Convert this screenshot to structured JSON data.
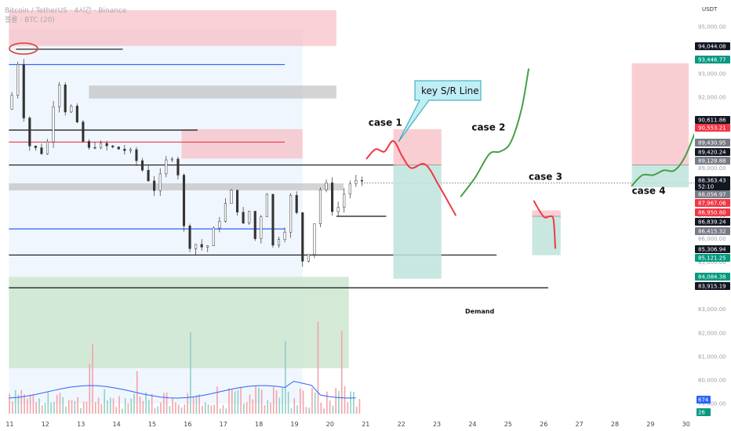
{
  "chart_data": {
    "type": "candlestick",
    "pair": "Bitcoin / TetherUS · 4시간 · Binance",
    "subtitle": "볼륨 · BTC (20)",
    "currency": "USDT",
    "ylim": [
      78500,
      96000
    ],
    "y_ticks": [
      95000,
      93000,
      92000,
      91000,
      90000,
      89000,
      88000,
      87000,
      86000,
      85000,
      84000,
      83000,
      82000,
      81000,
      80000,
      79000
    ],
    "x_ticks": [
      "11",
      "12",
      "13",
      "14",
      "15",
      "16",
      "17",
      "18",
      "19",
      "20",
      "21",
      "22",
      "23",
      "24",
      "25",
      "26",
      "27",
      "28",
      "29",
      "30"
    ],
    "price_path": [
      [
        11.0,
        91500
      ],
      [
        11.2,
        92200
      ],
      [
        11.35,
        93600
      ],
      [
        11.5,
        91200
      ],
      [
        11.7,
        89700
      ],
      [
        11.9,
        89900
      ],
      [
        12.1,
        89400
      ],
      [
        12.3,
        91500
      ],
      [
        12.5,
        92600
      ],
      [
        12.7,
        91200
      ],
      [
        12.9,
        91800
      ],
      [
        13.05,
        90400
      ],
      [
        13.3,
        89800
      ],
      [
        13.6,
        90000
      ],
      [
        13.9,
        89900
      ],
      [
        14.2,
        89800
      ],
      [
        14.5,
        89700
      ],
      [
        14.8,
        89000
      ],
      [
        15.0,
        88500
      ],
      [
        15.2,
        88000
      ],
      [
        15.4,
        89000
      ],
      [
        15.6,
        89600
      ],
      [
        15.8,
        89200
      ],
      [
        16.0,
        86500
      ],
      [
        16.2,
        85500
      ],
      [
        16.4,
        85900
      ],
      [
        16.6,
        85400
      ],
      [
        16.8,
        86300
      ],
      [
        17.0,
        86800
      ],
      [
        17.2,
        87600
      ],
      [
        17.4,
        88200
      ],
      [
        17.6,
        86200
      ],
      [
        17.8,
        87400
      ],
      [
        18.0,
        86000
      ],
      [
        18.15,
        86800
      ],
      [
        18.3,
        88400
      ],
      [
        18.5,
        85700
      ],
      [
        18.7,
        86100
      ],
      [
        18.9,
        86500
      ],
      [
        19.0,
        87800
      ],
      [
        19.1,
        88800
      ],
      [
        19.2,
        86200
      ],
      [
        19.3,
        85000
      ],
      [
        19.45,
        85300
      ],
      [
        19.6,
        85600
      ],
      [
        19.7,
        87200
      ],
      [
        19.85,
        88200
      ],
      [
        20.0,
        88300
      ],
      [
        20.2,
        87000
      ],
      [
        20.4,
        87500
      ],
      [
        20.6,
        88300
      ],
      [
        20.8,
        88450
      ],
      [
        20.9,
        88363
      ]
    ],
    "zones": [
      {
        "name": "Demand",
        "kind": "demand",
        "x": [
          11,
          20.55
        ],
        "y": [
          80500,
          84380
        ]
      },
      {
        "kind": "supply",
        "x": [
          11,
          20.2
        ],
        "y": [
          94180,
          95700
        ]
      },
      {
        "kind": "supply",
        "x": [
          15.85,
          19.25
        ],
        "y": [
          89400,
          90650
        ]
      },
      {
        "kind": "range",
        "x": [
          11,
          19.25
        ],
        "y": [
          79000,
          94900
        ]
      },
      {
        "kind": "neutral",
        "x": [
          13.25,
          20.2
        ],
        "y": [
          91950,
          92500
        ]
      },
      {
        "kind": "neutral",
        "x": [
          11,
          20.4
        ],
        "y": [
          88050,
          88350
        ]
      }
    ],
    "levels": [
      {
        "y": 94044,
        "x": [
          11.2,
          14.2
        ],
        "color": "#111111"
      },
      {
        "y": 93390,
        "x": [
          11,
          18.75
        ],
        "color": "#2962ff"
      },
      {
        "y": 90611,
        "x": [
          11,
          16.3
        ],
        "color": "#111111"
      },
      {
        "y": 90100,
        "x": [
          11,
          18.75
        ],
        "color": "#f23645"
      },
      {
        "y": 89128,
        "x": [
          11,
          21.9
        ],
        "color": "#111111"
      },
      {
        "y": 86950,
        "x": [
          20.2,
          21.6
        ],
        "color": "#111111"
      },
      {
        "y": 86415,
        "x": [
          11,
          18.75
        ],
        "color": "#2962ff"
      },
      {
        "y": 85306,
        "x": [
          11,
          24.7
        ],
        "color": "#111111"
      },
      {
        "y": 83915,
        "x": [
          11,
          26.15
        ],
        "color": "#111111"
      }
    ],
    "positions": [
      {
        "entry": 89130,
        "stop": 90650,
        "target": 84300,
        "x": [
          21.8,
          23.15
        ]
      },
      {
        "entry": 86950,
        "stop": 87200,
        "target": 85300,
        "x": [
          25.7,
          26.5
        ]
      },
      {
        "entry": 89130,
        "stop": 93450,
        "target": 88180,
        "x": [
          28.5,
          30.1
        ]
      }
    ],
    "scenarios": [
      {
        "label": "case 1",
        "color": "#f23645",
        "path": [
          [
            21.05,
            89400
          ],
          [
            21.3,
            89800
          ],
          [
            21.55,
            89700
          ],
          [
            21.8,
            90150
          ],
          [
            22.05,
            89500
          ],
          [
            22.3,
            89000
          ],
          [
            22.7,
            89150
          ],
          [
            23.1,
            88200
          ],
          [
            23.55,
            87000
          ]
        ]
      },
      {
        "label": "case 2",
        "color": "#43a047",
        "path": [
          [
            23.7,
            87800
          ],
          [
            24.1,
            88600
          ],
          [
            24.5,
            89600
          ],
          [
            24.8,
            89700
          ],
          [
            25.1,
            90100
          ],
          [
            25.4,
            91500
          ],
          [
            25.6,
            93200
          ]
        ]
      },
      {
        "label": "case 3",
        "color": "#f23645",
        "path": [
          [
            25.75,
            87600
          ],
          [
            25.9,
            87200
          ],
          [
            26.05,
            86900
          ],
          [
            26.2,
            86950
          ],
          [
            26.3,
            86800
          ],
          [
            26.35,
            85600
          ]
        ]
      },
      {
        "label": "case 4",
        "color": "#43a047",
        "path": [
          [
            28.5,
            88250
          ],
          [
            28.8,
            88700
          ],
          [
            29.1,
            88700
          ],
          [
            29.4,
            88900
          ],
          [
            29.7,
            88900
          ],
          [
            30.0,
            89500
          ],
          [
            30.35,
            90800
          ]
        ]
      }
    ],
    "annotations": [
      {
        "text": "key S/R Line",
        "kind": "callout"
      },
      {
        "text": "Demand",
        "kind": "zone-label"
      }
    ],
    "price_labels": [
      {
        "value": "94,044.08",
        "color": "#131722"
      },
      {
        "value": "93,446.77",
        "color": "#089981"
      },
      {
        "value": "90,611.86",
        "color": "#131722"
      },
      {
        "value": "90,553.21",
        "color": "#f23645"
      },
      {
        "value": "89,430.95",
        "color": "#787b86"
      },
      {
        "value": "89,420.24",
        "color": "#131722"
      },
      {
        "value": "89,128.88",
        "color": "#787b86"
      },
      {
        "value": "88,363.43",
        "color": "#131722"
      },
      {
        "value": "52:10",
        "color": "#131722"
      },
      {
        "value": "88,056.97",
        "color": "#787b86"
      },
      {
        "value": "87,967.06",
        "color": "#f23645"
      },
      {
        "value": "86,950.80",
        "color": "#f23645"
      },
      {
        "value": "86,839.24",
        "color": "#131722"
      },
      {
        "value": "86,415.32",
        "color": "#787b86"
      },
      {
        "value": "85,306.94",
        "color": "#131722"
      },
      {
        "value": "85,121.25",
        "color": "#089981"
      },
      {
        "value": "84,084.38",
        "color": "#089981"
      },
      {
        "value": "83,915.19",
        "color": "#131722"
      }
    ],
    "volume_badges": [
      {
        "value": "674",
        "color": "#2962ff"
      },
      {
        "value": "26",
        "color": "#089981"
      }
    ]
  }
}
